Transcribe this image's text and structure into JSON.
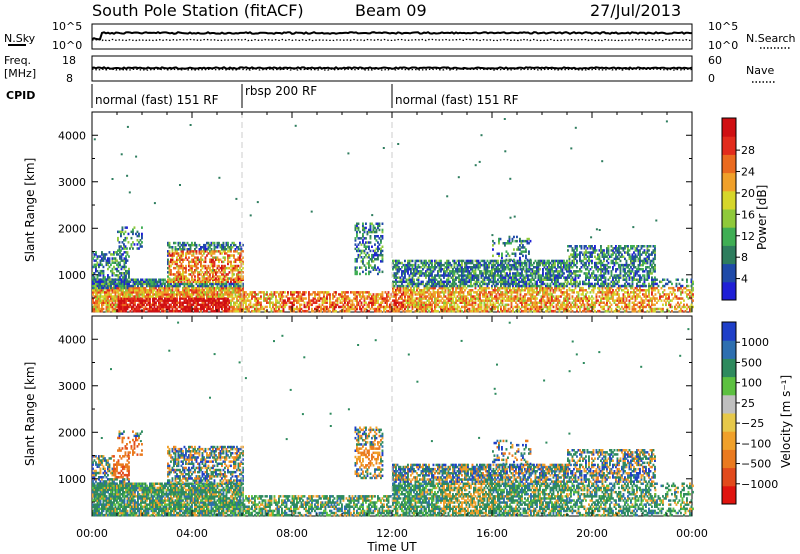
{
  "header": {
    "station": "South Pole Station (fitACF)",
    "beam": "Beam 09",
    "date": "27/Jul/2013"
  },
  "strips": {
    "nsky_label": "N.Sky",
    "nsearch_label": "N.Search",
    "nsky_ticks": [
      "10^5",
      "10^0"
    ],
    "nsearch_ticks": [
      "10^5",
      "10^0"
    ],
    "freq_label_1": "Freq.",
    "freq_label_2": "[MHz]",
    "freq_ticks": [
      "18",
      "8"
    ],
    "nave_label": "Nave",
    "nave_ticks": [
      "60",
      "0"
    ],
    "cpid_label": "CPID",
    "cpid_segments": [
      {
        "label": "normal (fast) 151 RF",
        "start_h": 0,
        "end_h": 6
      },
      {
        "label": "rbsp 200 RF",
        "start_h": 6,
        "end_h": 12
      },
      {
        "label": "normal (fast) 151 RF",
        "start_h": 12,
        "end_h": 24
      }
    ]
  },
  "chart_data": [
    {
      "type": "heatmap",
      "ylabel": "Slant Range [km]",
      "yticks": [
        "1000",
        "2000",
        "3000",
        "4000"
      ],
      "ytick_values": [
        1000,
        2000,
        3000,
        4000
      ],
      "ylim": [
        200,
        4500
      ],
      "xlim": [
        0,
        24
      ],
      "colorbar_label": "Power [dB]",
      "colorbar_ticks": [
        "4",
        "8",
        "12",
        "16",
        "20",
        "24",
        "28"
      ],
      "colorbar_colors": [
        "#1f1fd6",
        "#1f4aa8",
        "#2e7d5e",
        "#3fae54",
        "#8fc93a",
        "#d6d62a",
        "#f0a02a",
        "#ea6a1f",
        "#e22b1c",
        "#cf0f12"
      ]
    },
    {
      "type": "heatmap",
      "ylabel": "Slant Range [km]",
      "yticks": [
        "1000",
        "2000",
        "3000",
        "4000"
      ],
      "ytick_values": [
        1000,
        2000,
        3000,
        4000
      ],
      "ylim": [
        200,
        4500
      ],
      "xlim": [
        0,
        24
      ],
      "colorbar_label": "Velocity [m s⁻¹]",
      "colorbar_ticks": [
        "1000",
        "500",
        "100",
        "25",
        "−25",
        "−100",
        "−500",
        "−1000"
      ],
      "colorbar_colors": [
        "#1f3fc8",
        "#2e6fb0",
        "#2e8a5e",
        "#5cc040",
        "#bfbfbf",
        "#e6c84a",
        "#f0a02a",
        "#ea7a1f",
        "#e24a1c",
        "#e0140f"
      ]
    }
  ],
  "xaxis": {
    "ticks": [
      "00:00",
      "04:00",
      "08:00",
      "12:00",
      "16:00",
      "20:00",
      "00:00"
    ],
    "label": "Time UT"
  }
}
